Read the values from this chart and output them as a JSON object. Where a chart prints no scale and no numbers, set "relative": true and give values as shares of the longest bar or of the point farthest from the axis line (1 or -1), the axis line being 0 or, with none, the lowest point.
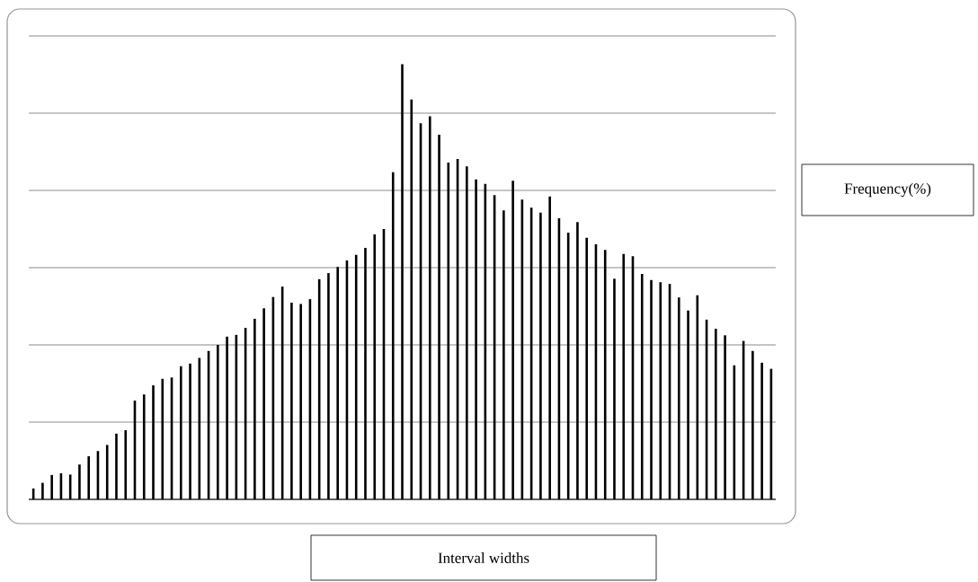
{
  "chart_data": {
    "type": "bar",
    "xlabel": "Interval widths",
    "annotations": [
      "Frequency(%)"
    ],
    "relative": true,
    "grid": "y",
    "categories": [
      null,
      null,
      null,
      null,
      null,
      null,
      null,
      null,
      null,
      null,
      null,
      null,
      null,
      null,
      null,
      null,
      null,
      null,
      null,
      null,
      null,
      null,
      null,
      null,
      null,
      null,
      null,
      null,
      null,
      null,
      null,
      null,
      null,
      null,
      null,
      null,
      null,
      null,
      null,
      null,
      null,
      null,
      null,
      null,
      null,
      null,
      null,
      null,
      null,
      null,
      null,
      null,
      null,
      null,
      null,
      null,
      null,
      null,
      null,
      null,
      null,
      null,
      null,
      null,
      null,
      null,
      null,
      null,
      null,
      null,
      null,
      null,
      null,
      null,
      null,
      null,
      null,
      null,
      null,
      null,
      null
    ],
    "color": "#000000",
    "values": [
      0.025,
      0.038,
      0.056,
      0.06,
      0.057,
      0.08,
      0.099,
      0.111,
      0.125,
      0.151,
      0.159,
      0.227,
      0.241,
      0.262,
      0.277,
      0.28,
      0.306,
      0.312,
      0.325,
      0.341,
      0.355,
      0.374,
      0.378,
      0.394,
      0.415,
      0.439,
      0.465,
      0.489,
      0.452,
      0.449,
      0.46,
      0.506,
      0.52,
      0.534,
      0.549,
      0.562,
      0.578,
      0.609,
      0.621,
      0.752,
      1,
      0.919,
      0.864,
      0.88,
      0.838,
      0.774,
      0.782,
      0.765,
      0.735,
      0.725,
      0.699,
      0.664,
      0.732,
      0.689,
      0.67,
      0.659,
      0.696,
      0.646,
      0.613,
      0.637,
      0.601,
      0.586,
      0.573,
      0.507,
      0.564,
      0.559,
      0.518,
      0.504,
      0.499,
      0.495,
      0.464,
      0.434,
      0.469,
      0.413,
      0.392,
      0.377,
      0.308,
      0.364,
      0.341,
      0.314,
      0.3
    ]
  }
}
